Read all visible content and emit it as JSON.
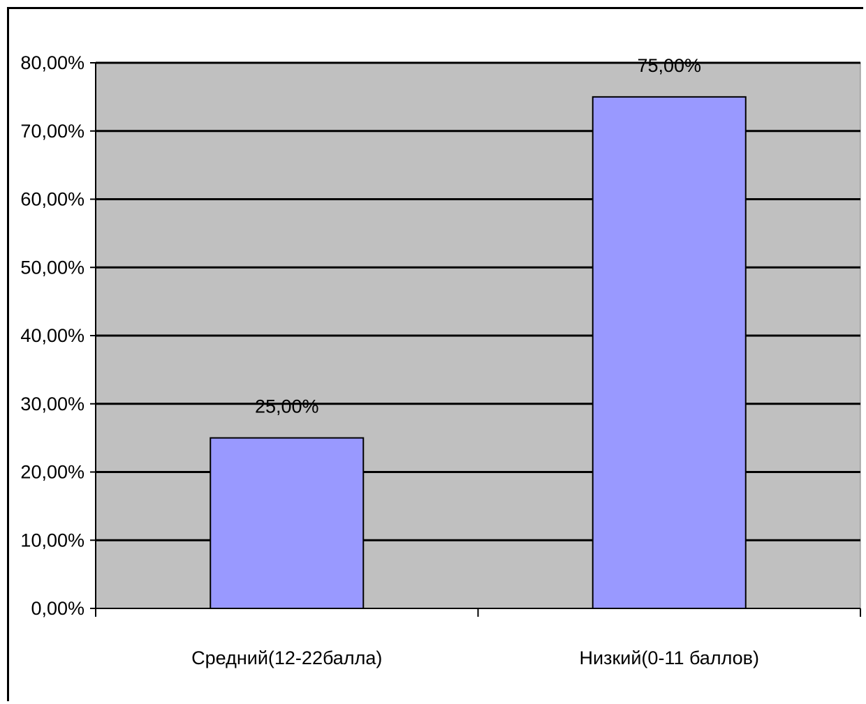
{
  "chart_data": {
    "type": "bar",
    "categories": [
      "Средний(12-22балла)",
      "Низкий(0-11 баллов)"
    ],
    "values": [
      25.0,
      75.0
    ],
    "value_labels": [
      "25,00%",
      "75,00%"
    ],
    "ylim": [
      0,
      80
    ],
    "yticks": [
      0,
      10,
      20,
      30,
      40,
      50,
      60,
      70,
      80
    ],
    "ytick_labels": [
      "0,00%",
      "10,00%",
      "20,00%",
      "30,00%",
      "40,00%",
      "50,00%",
      "60,00%",
      "70,00%",
      "80,00%"
    ],
    "title": "",
    "xlabel": "",
    "ylabel": "",
    "grid": true,
    "legend": "none",
    "colors": {
      "plot_background": "#c0c0c0",
      "bar_fill": "#9999ff",
      "bar_stroke": "#000000",
      "gridline": "#000000"
    }
  }
}
